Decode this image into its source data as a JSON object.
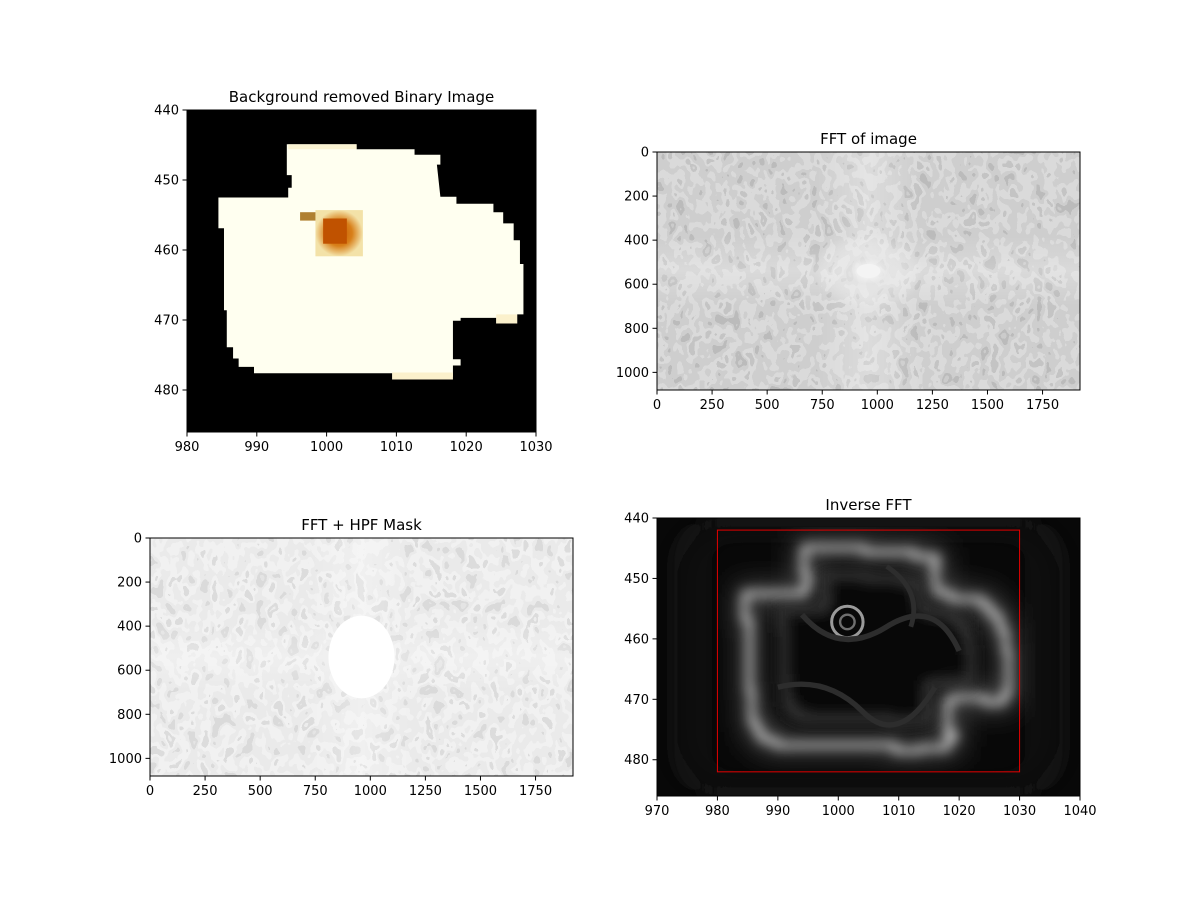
{
  "chart_data": [
    {
      "type": "heatmap",
      "title": "Background removed Binary Image",
      "xlim": [
        980,
        1030
      ],
      "ylim": [
        486,
        440
      ],
      "xticks": [
        980,
        990,
        1000,
        1010,
        1020,
        1030
      ],
      "yticks": [
        440,
        450,
        460,
        470,
        480
      ],
      "shape_polygon": [
        [
          994.3,
          444.9
        ],
        [
          1004.3,
          444.9
        ],
        [
          1004.3,
          445.6
        ],
        [
          1012.6,
          445.6
        ],
        [
          1012.6,
          446.4
        ],
        [
          1016.3,
          446.4
        ],
        [
          1016.3,
          447.8
        ],
        [
          1015.8,
          447.8
        ],
        [
          1016.3,
          452.4
        ],
        [
          1018.6,
          452.4
        ],
        [
          1018.6,
          453.4
        ],
        [
          1023.9,
          453.4
        ],
        [
          1023.9,
          454.6
        ],
        [
          1025.3,
          454.6
        ],
        [
          1025.3,
          456.2
        ],
        [
          1026.8,
          456.2
        ],
        [
          1026.8,
          458.6
        ],
        [
          1027.7,
          458.6
        ],
        [
          1027.7,
          462.0
        ],
        [
          1028.2,
          462.0
        ],
        [
          1028.2,
          469.2
        ],
        [
          1027.3,
          469.2
        ],
        [
          1027.3,
          470.5
        ],
        [
          1024.3,
          470.5
        ],
        [
          1024.3,
          469.7
        ],
        [
          1019.2,
          469.7
        ],
        [
          1019.2,
          470.1
        ],
        [
          1018.1,
          470.1
        ],
        [
          1018.1,
          475.6
        ],
        [
          1019.2,
          475.6
        ],
        [
          1019.2,
          476.5
        ],
        [
          1018.1,
          476.5
        ],
        [
          1018.1,
          478.1
        ],
        [
          1013.6,
          478.1
        ],
        [
          1013.6,
          478.5
        ],
        [
          1009.4,
          478.5
        ],
        [
          1009.4,
          477.6
        ],
        [
          989.6,
          477.6
        ],
        [
          989.6,
          476.7
        ],
        [
          987.4,
          476.7
        ],
        [
          987.4,
          475.5
        ],
        [
          986.6,
          475.5
        ],
        [
          986.6,
          473.9
        ],
        [
          985.7,
          473.9
        ],
        [
          985.7,
          468.6
        ],
        [
          985.3,
          468.6
        ],
        [
          985.3,
          456.9
        ],
        [
          984.5,
          456.9
        ],
        [
          984.5,
          452.5
        ],
        [
          994.5,
          452.5
        ],
        [
          994.5,
          451.1
        ],
        [
          995.0,
          451.1
        ],
        [
          995.0,
          449.3
        ],
        [
          994.3,
          449.3
        ]
      ],
      "fill_value": "white",
      "blob_center": [
        1001.7,
        457.3
      ]
    },
    {
      "type": "heatmap",
      "title": "FFT of image",
      "xlim": [
        0,
        1920
      ],
      "ylim": [
        1080,
        0
      ],
      "xticks": [
        0,
        250,
        500,
        750,
        1000,
        1250,
        1500,
        1750
      ],
      "yticks": [
        0,
        200,
        400,
        600,
        800,
        1000
      ],
      "peak_center": [
        960,
        540
      ]
    },
    {
      "type": "heatmap",
      "title": "FFT + HPF Mask",
      "xlim": [
        0,
        1920
      ],
      "ylim": [
        1080,
        0
      ],
      "xticks": [
        0,
        250,
        500,
        750,
        1000,
        1250,
        1500,
        1750
      ],
      "yticks": [
        0,
        200,
        400,
        600,
        800,
        1000
      ],
      "mask_center": [
        960,
        540
      ],
      "mask_radius": 150
    },
    {
      "type": "heatmap",
      "title": "Inverse FFT",
      "xlim": [
        970,
        1040
      ],
      "ylim": [
        486,
        440
      ],
      "xticks": [
        970,
        980,
        990,
        1000,
        1010,
        1020,
        1030,
        1040
      ],
      "yticks": [
        440,
        450,
        460,
        470,
        480
      ],
      "bounding_box": {
        "x0": 980,
        "x1": 1030,
        "y0": 442,
        "y1": 482,
        "color": "#e00000"
      },
      "edge_polygon": [
        [
          994.3,
          444.9
        ],
        [
          1004.3,
          444.9
        ],
        [
          1004.3,
          445.6
        ],
        [
          1012.6,
          445.6
        ],
        [
          1012.6,
          446.4
        ],
        [
          1016.3,
          446.4
        ],
        [
          1016.3,
          447.8
        ],
        [
          1015.8,
          447.8
        ],
        [
          1016.3,
          452.4
        ],
        [
          1018.6,
          452.4
        ],
        [
          1018.6,
          453.4
        ],
        [
          1023.9,
          453.4
        ],
        [
          1023.9,
          454.6
        ],
        [
          1025.3,
          454.6
        ],
        [
          1025.3,
          456.2
        ],
        [
          1026.8,
          456.2
        ],
        [
          1026.8,
          458.6
        ],
        [
          1027.7,
          458.6
        ],
        [
          1027.7,
          462.0
        ],
        [
          1028.2,
          462.0
        ],
        [
          1028.2,
          469.2
        ],
        [
          1027.3,
          469.2
        ],
        [
          1027.3,
          470.5
        ],
        [
          1024.3,
          470.5
        ],
        [
          1024.3,
          469.7
        ],
        [
          1019.2,
          469.7
        ],
        [
          1019.2,
          470.1
        ],
        [
          1018.1,
          470.1
        ],
        [
          1018.1,
          475.6
        ],
        [
          1019.2,
          475.6
        ],
        [
          1019.2,
          476.5
        ],
        [
          1018.1,
          476.5
        ],
        [
          1018.1,
          478.1
        ],
        [
          1013.6,
          478.1
        ],
        [
          1013.6,
          478.5
        ],
        [
          1009.4,
          478.5
        ],
        [
          1009.4,
          477.6
        ],
        [
          989.6,
          477.6
        ],
        [
          989.6,
          476.7
        ],
        [
          987.4,
          476.7
        ],
        [
          987.4,
          475.5
        ],
        [
          986.6,
          475.5
        ],
        [
          986.6,
          473.9
        ],
        [
          985.7,
          473.9
        ],
        [
          985.7,
          468.6
        ],
        [
          985.3,
          468.6
        ],
        [
          985.3,
          456.9
        ],
        [
          984.5,
          456.9
        ],
        [
          984.5,
          452.5
        ],
        [
          994.5,
          452.5
        ],
        [
          994.5,
          451.1
        ],
        [
          995.0,
          451.1
        ],
        [
          995.0,
          449.3
        ],
        [
          994.3,
          449.3
        ]
      ]
    }
  ]
}
